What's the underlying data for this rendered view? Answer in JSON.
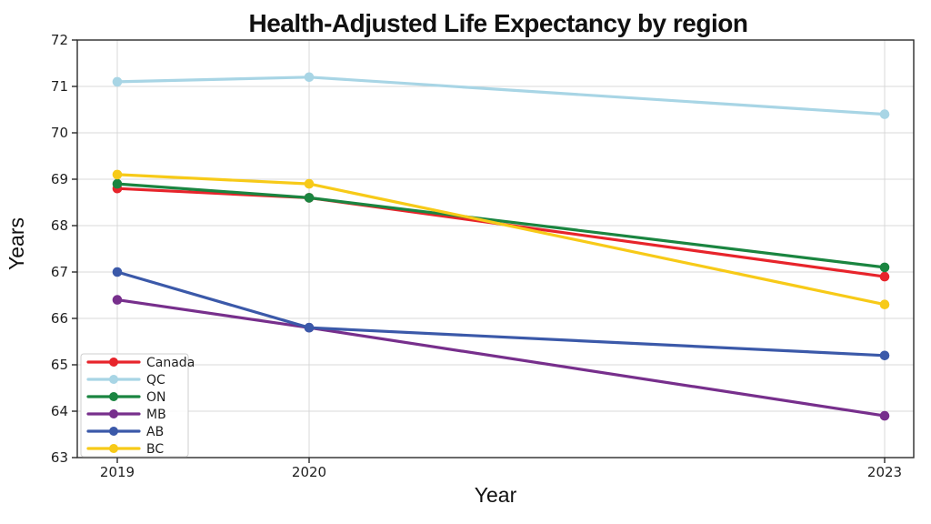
{
  "chart_data": {
    "type": "line",
    "title": "Health-Adjusted Life Expectancy by region",
    "xlabel": "Year",
    "ylabel": "Years",
    "x": [
      2019,
      2020,
      2023
    ],
    "x_tick_labels": [
      "2019",
      "2020",
      "2023"
    ],
    "y_ticks": [
      63,
      64,
      65,
      66,
      67,
      68,
      69,
      70,
      71,
      72
    ],
    "ylim": [
      63,
      72
    ],
    "xlim": [
      2018.79,
      2023.15
    ],
    "grid": true,
    "legend_position": "lower left",
    "series": [
      {
        "name": "Canada",
        "color": "#e7242b",
        "values": [
          68.8,
          68.6,
          66.9
        ]
      },
      {
        "name": "QC",
        "color": "#a8d5e5",
        "values": [
          71.1,
          71.2,
          70.4
        ]
      },
      {
        "name": "ON",
        "color": "#1a8540",
        "values": [
          68.9,
          68.6,
          67.1
        ]
      },
      {
        "name": "MB",
        "color": "#772f8c",
        "values": [
          66.4,
          65.8,
          63.9
        ]
      },
      {
        "name": "AB",
        "color": "#3b59a9",
        "values": [
          67.0,
          65.8,
          65.2
        ]
      },
      {
        "name": "BC",
        "color": "#f7ca18",
        "values": [
          69.1,
          68.9,
          66.3
        ]
      }
    ],
    "style": {
      "grid_color": "#d8d8d8",
      "spine_color": "#2a2a2a",
      "background": "#ffffff"
    }
  }
}
